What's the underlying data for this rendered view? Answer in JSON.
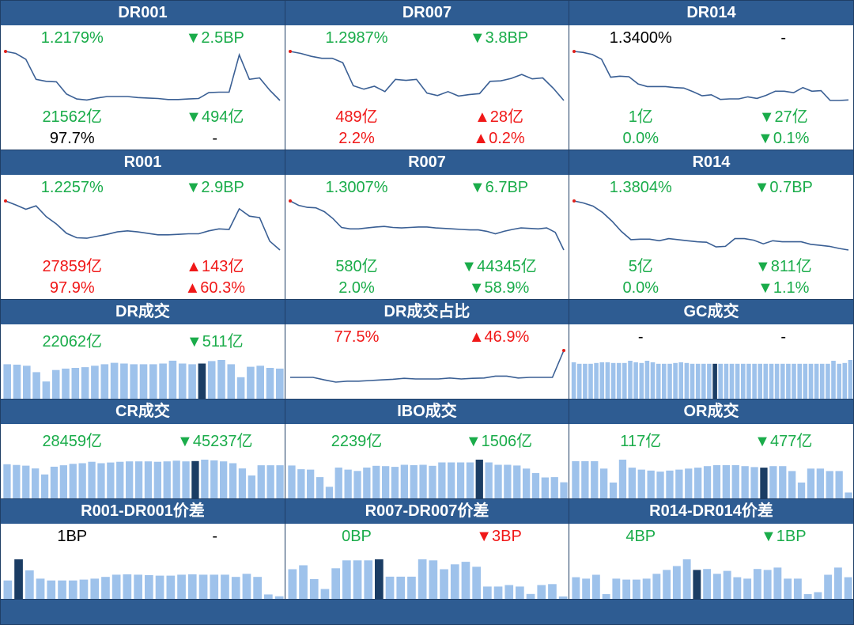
{
  "colors": {
    "header": "#2e5c92",
    "line": "#3a5f94",
    "bar": "#9ec2eb",
    "bar_highlight": "#1b3d64",
    "up": "#f01818",
    "down": "#1aac4a"
  },
  "panels": [
    {
      "title": "DR001",
      "type": "line",
      "rows": [
        [
          "1.2179%",
          "▼2.5BP",
          "g",
          "g"
        ],
        [
          "21562亿",
          "▼494亿",
          "g",
          "g"
        ],
        [
          "97.7%",
          "-",
          "k",
          "k"
        ]
      ],
      "series": [
        10,
        9.6,
        8.4,
        4.3,
        3.9,
        3.8,
        1.3,
        0.3,
        0.1,
        0.5,
        0.8,
        0.8,
        0.8,
        0.6,
        0.5,
        0.4,
        0.2,
        0.2,
        0.3,
        0.4,
        1.6,
        1.7,
        1.7,
        9.3,
        4.3,
        4.6,
        2.1,
        0
      ]
    },
    {
      "title": "DR007",
      "type": "line",
      "rows": [
        [
          "1.2987%",
          "▼3.8BP",
          "g",
          "g"
        ],
        [
          "489亿",
          "▲28亿",
          "r",
          "r"
        ],
        [
          "2.2%",
          "▲0.2%",
          "r",
          "r"
        ]
      ],
      "series": [
        10,
        9.6,
        9,
        8.6,
        8.6,
        7.7,
        3,
        2.3,
        2.9,
        1.8,
        4.3,
        4.1,
        4.3,
        1.5,
        1,
        1.8,
        0.9,
        1.2,
        1.4,
        3.9,
        4,
        4.5,
        5.3,
        4.4,
        4.6,
        2.5,
        0
      ]
    },
    {
      "title": "DR014",
      "type": "line",
      "rows": [
        [
          "1.3400%",
          "-",
          "k",
          "k"
        ],
        [
          "1亿",
          "▼27亿",
          "g",
          "g"
        ],
        [
          "0.0%",
          "▼0.1%",
          "g",
          "g"
        ]
      ],
      "series": [
        10,
        9.8,
        9.4,
        8.5,
        5,
        5.2,
        5.1,
        3.7,
        3.2,
        3.2,
        3.2,
        3.0,
        2.9,
        2.2,
        1.4,
        1.6,
        0.7,
        0.8,
        0.8,
        1.2,
        0.9,
        1.5,
        2.3,
        2.3,
        2.0,
        3.0,
        2.3,
        2.4,
        0.5,
        0.5,
        0.6
      ]
    },
    {
      "title": "R001",
      "type": "line",
      "rows": [
        [
          "1.2257%",
          "▼2.9BP",
          "g",
          "g"
        ],
        [
          "27859亿",
          "▲143亿",
          "r",
          "r"
        ],
        [
          "97.9%",
          "▲60.3%",
          "r",
          "r"
        ]
      ],
      "series": [
        10,
        9.2,
        8.3,
        9,
        6.8,
        5.3,
        3.4,
        2.5,
        2.4,
        2.8,
        3.2,
        3.7,
        3.9,
        3.7,
        3.4,
        3.1,
        3.1,
        3.2,
        3.3,
        3.3,
        3.9,
        4.3,
        4.2,
        8.4,
        6.9,
        6.6,
        1.8,
        0
      ]
    },
    {
      "title": "R007",
      "type": "line",
      "rows": [
        [
          "1.3007%",
          "▼6.7BP",
          "g",
          "g"
        ],
        [
          "580亿",
          "▼44345亿",
          "g",
          "g"
        ],
        [
          "2.0%",
          "▼58.9%",
          "g",
          "g"
        ]
      ],
      "series": [
        10,
        9.1,
        8.7,
        8.6,
        7.8,
        6.4,
        4.6,
        4.3,
        4.3,
        4.5,
        4.7,
        4.8,
        4.6,
        4.5,
        4.6,
        4.7,
        4.7,
        4.5,
        4.4,
        4.3,
        4.2,
        4.1,
        4.1,
        3.8,
        3.3,
        3.8,
        4.2,
        4.5,
        4.4,
        4.3,
        4.5,
        3.6,
        0
      ]
    },
    {
      "title": "R014",
      "type": "line",
      "rows": [
        [
          "1.3804%",
          "▼0.7BP",
          "g",
          "g"
        ],
        [
          "5亿",
          "▼811亿",
          "g",
          "g"
        ],
        [
          "0.0%",
          "▼1.1%",
          "g",
          "g"
        ]
      ],
      "series": [
        10,
        9.6,
        9,
        7.8,
        6.1,
        4.1,
        2.5,
        2.6,
        2.6,
        2.3,
        2.7,
        2.5,
        2.3,
        2.1,
        2.0,
        1.1,
        1.2,
        2.7,
        2.7,
        2.4,
        1.7,
        2.3,
        2.1,
        2.1,
        2.1,
        1.6,
        1.4,
        1.2,
        0.8,
        0.5
      ]
    },
    {
      "title": "DR成交",
      "type": "bar",
      "rows": [
        [
          "22062亿",
          "▼511亿",
          "g",
          "g"
        ]
      ],
      "bars": [
        0.96,
        0.95,
        0.92,
        0.74,
        0.48,
        0.8,
        0.84,
        0.86,
        0.88,
        0.92,
        0.96,
        1.0,
        0.98,
        0.96,
        0.96,
        0.96,
        0.98,
        1.06,
        0.98,
        0.96,
        0.98,
        1.05,
        1.08,
        0.96,
        0.6,
        0.89,
        0.92,
        0.86,
        0.84
      ],
      "highlight": 20
    },
    {
      "title": "DR成交占比",
      "type": "line",
      "rows": [
        [
          "77.5%",
          "▲46.9%",
          "r",
          "r"
        ]
      ],
      "series": [
        1.5,
        1.5,
        1.5,
        0.7,
        0,
        0.3,
        0.3,
        0.5,
        0.7,
        0.9,
        1.2,
        1.0,
        1.0,
        1.0,
        1.3,
        1.0,
        1.2,
        1.3,
        1.9,
        1.9,
        1.3,
        1.5,
        1.5,
        1.5,
        10
      ]
    },
    {
      "title": "GC成交",
      "type": "bar",
      "rows": [
        [
          "-",
          "-",
          "k",
          "k"
        ]
      ],
      "bars": [
        0.96,
        0.92,
        0.92,
        0.92,
        0.94,
        0.96,
        0.96,
        0.94,
        0.94,
        0.94,
        1.0,
        0.96,
        0.94,
        1.0,
        0.96,
        0.92,
        0.92,
        0.92,
        0.94,
        0.96,
        0.94,
        0.92,
        0.92,
        0.92,
        0.92,
        0.92,
        0.92,
        0.92,
        0.92,
        0.92,
        0.92,
        0.92,
        0.92,
        0.92,
        0.92,
        0.92,
        0.92,
        0.92,
        0.92,
        0.92,
        0.92,
        0.92,
        0.92,
        0.92,
        0.92,
        0.92,
        1.0,
        0.92,
        0.94,
        1.02
      ],
      "highlight": 25
    },
    {
      "title": "CR成交",
      "type": "bar",
      "rows": [
        [
          "28459亿",
          "▼45237亿",
          "g",
          "g"
        ]
      ],
      "bars": [
        0.97,
        0.95,
        0.93,
        0.85,
        0.68,
        0.9,
        0.94,
        0.98,
        1.0,
        1.04,
        1.0,
        1.02,
        1.04,
        1.05,
        1.05,
        1.05,
        1.04,
        1.05,
        1.07,
        1.05,
        1.06,
        1.1,
        1.08,
        1.05,
        1.0,
        0.85,
        0.65,
        0.94,
        0.94,
        0.94
      ],
      "highlight": 20
    },
    {
      "title": "IBO成交",
      "type": "bar",
      "rows": [
        [
          "2239亿",
          "▼1506亿",
          "g",
          "g"
        ]
      ],
      "bars": [
        0.96,
        0.85,
        0.84,
        0.62,
        0.34,
        0.9,
        0.84,
        0.8,
        0.9,
        0.95,
        0.94,
        0.92,
        0.98,
        0.97,
        0.98,
        0.95,
        1.05,
        1.05,
        1.05,
        1.05,
        1.13,
        1.05,
        0.98,
        0.98,
        0.96,
        0.87,
        0.74,
        0.61,
        0.62,
        0.47
      ],
      "highlight": 20
    },
    {
      "title": "OR成交",
      "type": "bar",
      "rows": [
        [
          "117亿",
          "▼477亿",
          "g",
          "g"
        ]
      ],
      "bars": [
        0.75,
        0.75,
        0.75,
        0.6,
        0.32,
        0.78,
        0.62,
        0.58,
        0.56,
        0.54,
        0.56,
        0.58,
        0.6,
        0.62,
        0.65,
        0.67,
        0.67,
        0.67,
        0.65,
        0.63,
        0.62,
        0.65,
        0.65,
        0.55,
        0.32,
        0.6,
        0.6,
        0.55,
        0.55,
        0.12
      ],
      "highlight": 20
    },
    {
      "title": "R001-DR001价差",
      "type": "bar",
      "rows": [
        [
          "1BP",
          "-",
          "k",
          "k"
        ]
      ],
      "bars": [
        0.42,
        0.9,
        0.65,
        0.46,
        0.42,
        0.42,
        0.42,
        0.44,
        0.46,
        0.5,
        0.55,
        0.56,
        0.55,
        0.54,
        0.53,
        0.53,
        0.55,
        0.56,
        0.55,
        0.55,
        0.55,
        0.5,
        0.57,
        0.5,
        0.1,
        0.06
      ],
      "highlight": 1
    },
    {
      "title": "R007-DR007价差",
      "type": "bar",
      "rows": [
        [
          "0BP",
          "▼3BP",
          "g",
          "r"
        ]
      ],
      "bars": [
        0.6,
        0.68,
        0.4,
        0.2,
        0.62,
        0.78,
        0.78,
        0.78,
        0.8,
        0.45,
        0.45,
        0.45,
        0.8,
        0.78,
        0.6,
        0.7,
        0.75,
        0.65,
        0.25,
        0.25,
        0.28,
        0.25,
        0.1,
        0.28,
        0.3,
        0.05
      ],
      "highlight": 8
    },
    {
      "title": "R014-DR014价差",
      "type": "bar",
      "rows": [
        [
          "4BP",
          "▼1BP",
          "g",
          "g"
        ]
      ],
      "bars": [
        0.45,
        0.42,
        0.5,
        0.1,
        0.42,
        0.4,
        0.4,
        0.42,
        0.52,
        0.6,
        0.68,
        0.82,
        0.6,
        0.62,
        0.52,
        0.58,
        0.45,
        0.42,
        0.62,
        0.6,
        0.65,
        0.42,
        0.42,
        0.1,
        0.14,
        0.5,
        0.65,
        0.45
      ],
      "highlight": 12
    }
  ]
}
